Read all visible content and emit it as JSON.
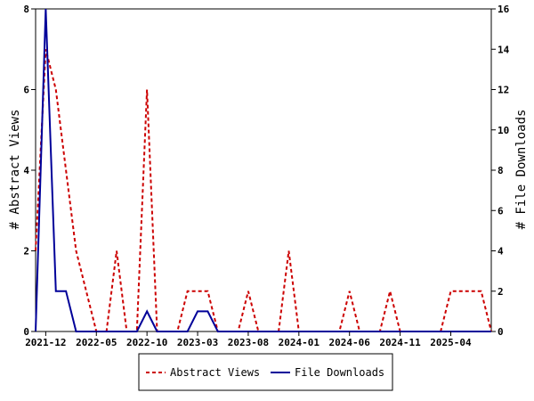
{
  "chart_data": {
    "type": "line",
    "x": [
      "2021-11",
      "2021-12",
      "2022-01",
      "2022-02",
      "2022-03",
      "2022-04",
      "2022-05",
      "2022-06",
      "2022-07",
      "2022-08",
      "2022-09",
      "2022-10",
      "2022-11",
      "2022-12",
      "2023-01",
      "2023-02",
      "2023-03",
      "2023-04",
      "2023-05",
      "2023-06",
      "2023-07",
      "2023-08",
      "2023-09",
      "2023-10",
      "2023-11",
      "2023-12",
      "2024-01",
      "2024-02",
      "2024-03",
      "2024-04",
      "2024-05",
      "2024-06",
      "2024-07",
      "2024-08",
      "2024-09",
      "2024-10",
      "2024-11",
      "2024-12",
      "2025-01",
      "2025-02",
      "2025-03",
      "2025-04",
      "2025-05",
      "2025-06",
      "2025-07",
      "2025-08"
    ],
    "x_tick_labels": [
      "2021-12",
      "2022-05",
      "2022-10",
      "2023-03",
      "2023-08",
      "2024-01",
      "2024-06",
      "2024-11",
      "2025-04"
    ],
    "series": [
      {
        "name": "Abstract Views",
        "axis": "left",
        "color": "#cc0000",
        "style": "dashed",
        "values": [
          2,
          7,
          6,
          4,
          2,
          1,
          0,
          0,
          2,
          0,
          0,
          6,
          0,
          0,
          0,
          1,
          1,
          1,
          0,
          0,
          0,
          1,
          0,
          0,
          0,
          2,
          0,
          0,
          0,
          0,
          0,
          1,
          0,
          0,
          0,
          1,
          0,
          0,
          0,
          0,
          0,
          1,
          1,
          1,
          1,
          0
        ]
      },
      {
        "name": "File Downloads",
        "axis": "right",
        "color": "#000099",
        "style": "solid",
        "values": [
          0,
          16,
          2,
          2,
          0,
          0,
          0,
          0,
          0,
          0,
          0,
          1,
          0,
          0,
          0,
          0,
          1,
          1,
          0,
          0,
          0,
          0,
          0,
          0,
          0,
          0,
          0,
          0,
          0,
          0,
          0,
          0,
          0,
          0,
          0,
          0,
          0,
          0,
          0,
          0,
          0,
          0,
          0,
          0,
          0,
          0
        ]
      }
    ],
    "ylabel_left": "# Abstract Views",
    "ylabel_right": "# File Downloads",
    "ylim_left": [
      0,
      8
    ],
    "ylim_right": [
      0,
      16
    ],
    "yticks_left": [
      "0",
      "2",
      "4",
      "6",
      "8"
    ],
    "yticks_right": [
      "0",
      "2",
      "4",
      "6",
      "8",
      "10",
      "12",
      "14",
      "16"
    ],
    "legend_position": "bottom-center",
    "grid": false
  }
}
